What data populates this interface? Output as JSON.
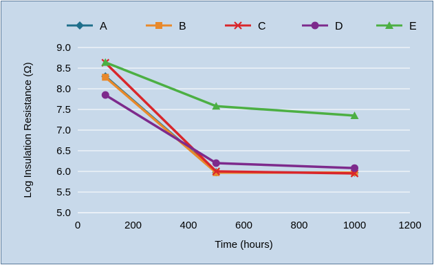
{
  "chart_data": {
    "type": "line",
    "title": "",
    "xlabel": "Time (hours)",
    "ylabel": "Log Insulation Resistance (Ω)",
    "xlim": [
      0,
      1200
    ],
    "ylim": [
      5.0,
      9.0
    ],
    "xticks": [
      0,
      200,
      400,
      600,
      800,
      1000,
      1200
    ],
    "yticks": [
      5.0,
      5.5,
      6.0,
      6.5,
      7.0,
      7.5,
      8.0,
      8.5,
      9.0
    ],
    "xtick_labels": [
      "0",
      "200",
      "400",
      "600",
      "800",
      "1000",
      "1200"
    ],
    "ytick_labels": [
      "5.0",
      "5.5",
      "6.0",
      "6.5",
      "7.0",
      "7.5",
      "8.0",
      "8.5",
      "9.0"
    ],
    "grid": "horizontal",
    "legend_position": "top",
    "x": [
      100,
      500,
      1000
    ],
    "series": [
      {
        "name": "A",
        "marker": "diamond",
        "color": "#1f6f8b",
        "values": [
          8.3,
          5.98,
          5.97
        ]
      },
      {
        "name": "B",
        "marker": "square",
        "color": "#e8892b",
        "values": [
          8.28,
          5.97,
          5.97
        ]
      },
      {
        "name": "C",
        "marker": "x",
        "color": "#d9262b",
        "values": [
          8.63,
          6.0,
          5.95
        ]
      },
      {
        "name": "D",
        "marker": "circle",
        "color": "#7d2a8c",
        "values": [
          7.85,
          6.2,
          6.08
        ]
      },
      {
        "name": "E",
        "marker": "triangle",
        "color": "#4caf43",
        "values": [
          8.64,
          7.58,
          7.35
        ]
      }
    ]
  }
}
